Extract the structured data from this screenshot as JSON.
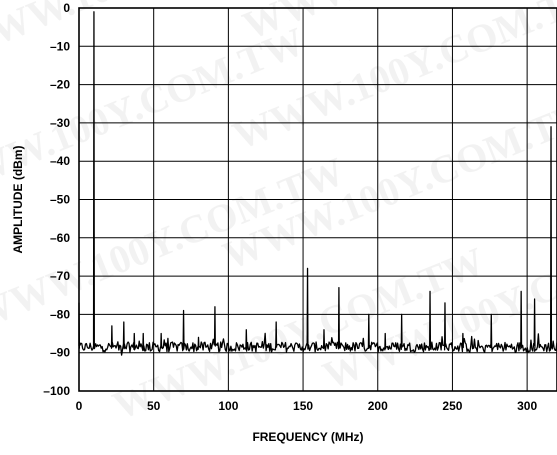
{
  "chart_data": {
    "type": "line",
    "title": "",
    "xlabel": "FREQUENCY (MHz)",
    "ylabel": "AMPLITUDE (dBm)",
    "xlim": [
      0,
      320
    ],
    "ylim": [
      -100,
      0
    ],
    "grid": true,
    "x_ticks": [
      0,
      50,
      100,
      150,
      200,
      250,
      300
    ],
    "x_tick_labels": [
      "0",
      "50",
      "100",
      "150",
      "200",
      "250",
      "300"
    ],
    "y_ticks": [
      0,
      -10,
      -20,
      -30,
      -40,
      -50,
      -60,
      -70,
      -80,
      -90,
      -100
    ],
    "y_tick_labels": [
      "0",
      "–10",
      "–20",
      "–30",
      "–40",
      "–50",
      "–60",
      "–70",
      "–80",
      "–90",
      "–100"
    ],
    "noise_floor": -88.5,
    "series": [
      {
        "values_note": "",
        "color": "#000000",
        "spurs": [
          {
            "x": 0,
            "y": -77
          },
          {
            "x": 10,
            "y": -1
          },
          {
            "x": 22,
            "y": -83
          },
          {
            "x": 30,
            "y": -82
          },
          {
            "x": 37,
            "y": -85
          },
          {
            "x": 43,
            "y": -85
          },
          {
            "x": 55,
            "y": -85
          },
          {
            "x": 70,
            "y": -79
          },
          {
            "x": 80,
            "y": -86
          },
          {
            "x": 91,
            "y": -78
          },
          {
            "x": 112,
            "y": -84
          },
          {
            "x": 132,
            "y": -82
          },
          {
            "x": 153,
            "y": -68
          },
          {
            "x": 164,
            "y": -84
          },
          {
            "x": 174,
            "y": -73
          },
          {
            "x": 194,
            "y": -80
          },
          {
            "x": 205,
            "y": -85
          },
          {
            "x": 216,
            "y": -80
          },
          {
            "x": 235,
            "y": -74
          },
          {
            "x": 245,
            "y": -77
          },
          {
            "x": 257,
            "y": -85
          },
          {
            "x": 276,
            "y": -80
          },
          {
            "x": 296,
            "y": -74
          },
          {
            "x": 305,
            "y": -76
          },
          {
            "x": 316,
            "y": -31
          }
        ]
      }
    ]
  },
  "watermark": {
    "text": "WWW.100Y.COM.TW",
    "color": "#c8c8c8"
  }
}
